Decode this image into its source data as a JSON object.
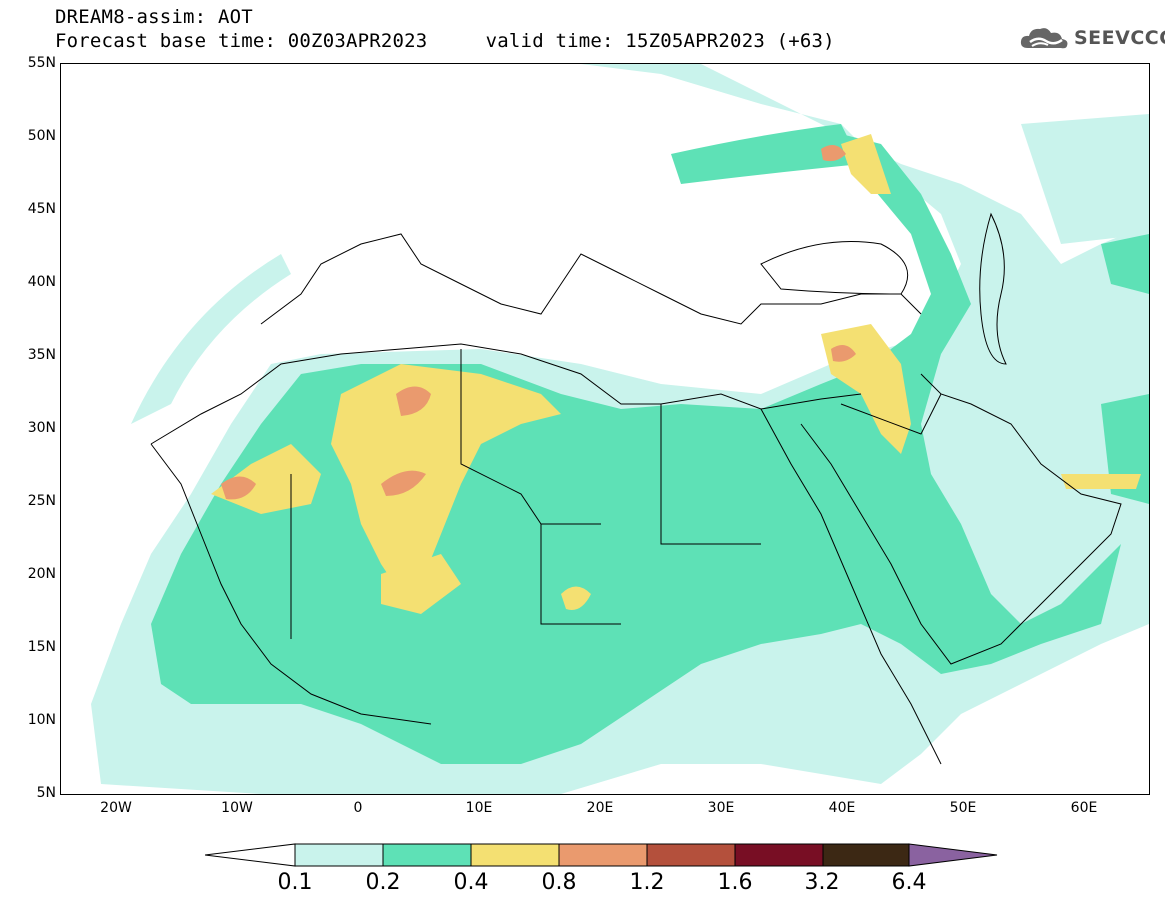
{
  "title": {
    "line1": "DREAM8-assim: AOT",
    "line2": "Forecast base time: 00Z03APR2023     valid time: 15Z05APR2023 (+63)"
  },
  "logo": {
    "text": "SEEVCCC",
    "icon": "cloud-logo-icon"
  },
  "axes": {
    "lat_labels": [
      "55N",
      "50N",
      "45N",
      "40N",
      "35N",
      "30N",
      "25N",
      "20N",
      "15N",
      "10N",
      "5N"
    ],
    "lon_labels": [
      "20W",
      "10W",
      "0",
      "10E",
      "20E",
      "30E",
      "40E",
      "50E",
      "60E"
    ]
  },
  "legend": {
    "labels": [
      "0.1",
      "0.2",
      "0.4",
      "0.8",
      "1.2",
      "1.6",
      "3.2",
      "6.4"
    ],
    "colors": [
      "#ffffff",
      "#c9f3ec",
      "#5ee1b6",
      "#f4e072",
      "#ea9a6e",
      "#b4503c",
      "#780e24",
      "#3c2814",
      "#8a62a0"
    ]
  },
  "map": {
    "extent": {
      "lon_min": -25,
      "lon_max": 65,
      "lat_min": 5,
      "lat_max": 55
    },
    "land_color": "#ffffff",
    "border_color": "#000000"
  }
}
